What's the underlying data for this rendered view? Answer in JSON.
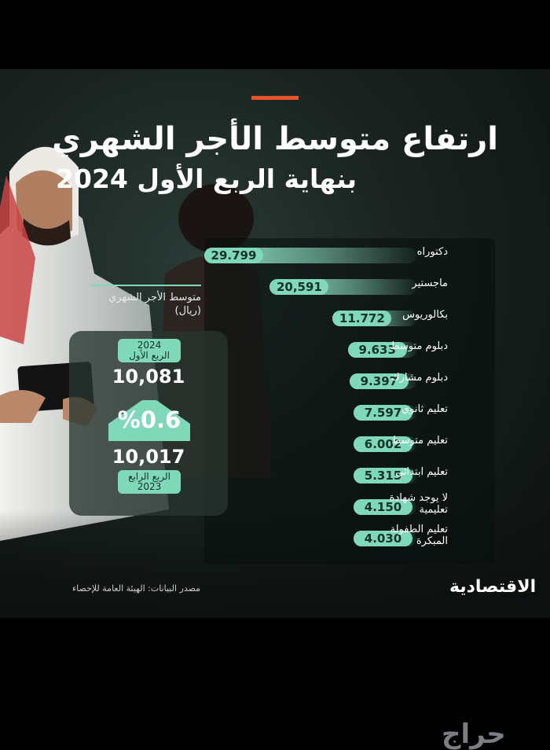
{
  "title": "ارتفاع متوسط الأجر الشهري",
  "subtitle": "بنهاية الربع الأول 2024",
  "chart_data": {
    "type": "bar",
    "orientation": "horizontal",
    "categories": [
      "دكتوراه",
      "ماجستير",
      "بكالوريوس",
      "دبلوم متوسط",
      "دبلوم مشارك",
      "تعليم ثانوي",
      "تعليم متوسط",
      "تعليم ابتدائي",
      "لا يوجد شهادة تعليمية",
      "تعليم الطفولة المبكرة"
    ],
    "category_labels": [
      [
        "دكتوراه"
      ],
      [
        "ماجستير"
      ],
      [
        "بكالوريوس"
      ],
      [
        "دبلوم متوسط"
      ],
      [
        "دبلوم مشارك"
      ],
      [
        "تعليم ثانوي"
      ],
      [
        "تعليم متوسط"
      ],
      [
        "تعليم ابتدائي"
      ],
      [
        "لا يوجد شهادة",
        "تعليمية"
      ],
      [
        "تعليم الطفولة",
        "المبكرة"
      ]
    ],
    "values": [
      29799,
      20591,
      11772,
      9633,
      9397,
      7597,
      6002,
      5315,
      4150,
      4030
    ],
    "value_labels": [
      "29.799",
      "20,591",
      "11.772",
      "9.633",
      "9.397",
      "7.597",
      "6.002",
      "5.315",
      "4.150",
      "4.030"
    ],
    "grid": false,
    "legend": "none"
  },
  "comparison": {
    "heading_line1": "متوسط الأجر الشهري",
    "heading_line2": "(ريال)",
    "current": {
      "year": "2024",
      "quarter": "الربع الأول",
      "value": "10,081"
    },
    "change": "%0.6",
    "previous": {
      "quarter": "الربع الرابع",
      "year": "2023",
      "value": "10,017"
    }
  },
  "source": "مصدر البيانات: الهيئة العامة للإحصاء",
  "brand": "الاقتصادية",
  "watermark": "حراج",
  "colors": {
    "accent": "#e8542a",
    "bar": "#7fd8b8",
    "pill_text": "#16302a"
  }
}
